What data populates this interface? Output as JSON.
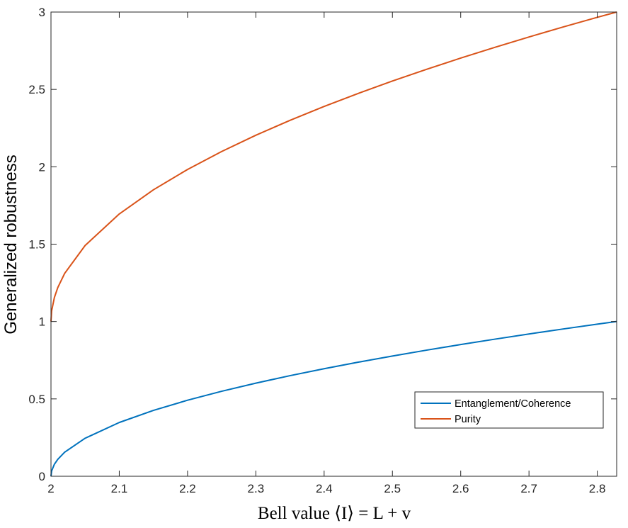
{
  "chart_data": {
    "type": "line",
    "xlabel": "Bell value ⟨I⟩ = L + v",
    "ylabel": "Generalized robustness",
    "xlim": [
      2,
      2.8284
    ],
    "ylim": [
      0,
      3
    ],
    "xticks": [
      "2",
      "2.1",
      "2.2",
      "2.3",
      "2.4",
      "2.5",
      "2.6",
      "2.7",
      "2.8"
    ],
    "yticks": [
      "0",
      "0.5",
      "1",
      "1.5",
      "2",
      "2.5",
      "3"
    ],
    "grid": false,
    "legend_position": "lower-right",
    "series": [
      {
        "name": "Entanglement/Coherence",
        "color": "#0072BD",
        "x": [
          2.0,
          2.001,
          2.005,
          2.01,
          2.02,
          2.05,
          2.1,
          2.15,
          2.2,
          2.25,
          2.3,
          2.35,
          2.4,
          2.45,
          2.5,
          2.55,
          2.6,
          2.65,
          2.7,
          2.75,
          2.8,
          2.8284
        ],
        "y": [
          0.0,
          0.0348,
          0.0777,
          0.1099,
          0.1554,
          0.2457,
          0.3475,
          0.4256,
          0.4914,
          0.5494,
          0.6019,
          0.6501,
          0.695,
          0.7372,
          0.7771,
          0.815,
          0.8512,
          0.886,
          0.9195,
          0.9518,
          0.983,
          1.0
        ]
      },
      {
        "name": "Purity",
        "color": "#D95319",
        "x": [
          2.0,
          2.001,
          2.005,
          2.01,
          2.02,
          2.05,
          2.1,
          2.15,
          2.2,
          2.25,
          2.3,
          2.35,
          2.4,
          2.45,
          2.5,
          2.55,
          2.6,
          2.65,
          2.7,
          2.75,
          2.8,
          2.8284
        ],
        "y": [
          1.0,
          1.0695,
          1.1554,
          1.2198,
          1.3108,
          1.4914,
          1.695,
          1.8512,
          1.9828,
          2.0988,
          2.2038,
          2.3002,
          2.39,
          2.4744,
          2.5542,
          2.63,
          2.7024,
          2.772,
          2.839,
          2.9036,
          2.966,
          3.0
        ]
      }
    ]
  }
}
